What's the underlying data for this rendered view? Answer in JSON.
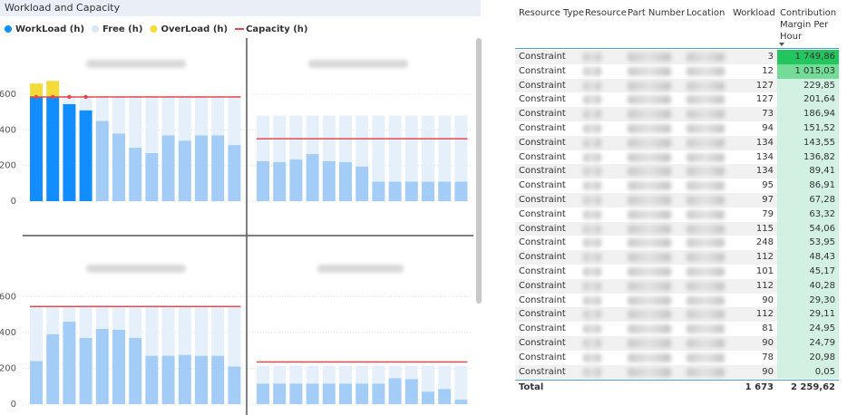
{
  "chart_data": {
    "type": "bar",
    "title": "Workload and Capacity",
    "ylim": [
      0,
      900
    ],
    "yticks": [
      0,
      200,
      400,
      600
    ],
    "grid": true,
    "series": [
      {
        "name": "WorkLoad (h)",
        "color": "#118dff",
        "dimmed_color": "#a3cdf6"
      },
      {
        "name": "Free (h)",
        "color": "#e6f0fb"
      },
      {
        "name": "OverLoad (h)",
        "color": "#f3dc3a"
      },
      {
        "name": "Capacity (h)",
        "color": "#e5484d"
      }
    ],
    "panels": [
      {
        "workload": [
          585,
          585,
          545,
          510,
          450,
          380,
          300,
          270,
          370,
          340,
          370,
          370,
          315
        ],
        "free": [
          0,
          0,
          45,
          80,
          140,
          210,
          290,
          320,
          220,
          250,
          220,
          220,
          275
        ],
        "overload": [
          75,
          90,
          0,
          0,
          0,
          0,
          0,
          0,
          0,
          0,
          0,
          0,
          0
        ],
        "capacity": 585,
        "highlighted": [
          true,
          true,
          true,
          true,
          false,
          false,
          false,
          false,
          false,
          false,
          false,
          false,
          false
        ]
      },
      {
        "workload": [
          225,
          220,
          235,
          265,
          225,
          220,
          195,
          110,
          110,
          110,
          110,
          110,
          110
        ],
        "free": [
          255,
          260,
          245,
          215,
          255,
          260,
          285,
          370,
          370,
          370,
          370,
          370,
          370
        ],
        "overload": [
          0,
          0,
          0,
          0,
          0,
          0,
          0,
          0,
          0,
          0,
          0,
          0,
          0
        ],
        "capacity": 350,
        "highlighted": [
          false,
          false,
          false,
          false,
          false,
          false,
          false,
          false,
          false,
          false,
          false,
          false,
          false
        ]
      },
      {
        "workload": [
          240,
          390,
          460,
          370,
          420,
          415,
          370,
          270,
          270,
          275,
          270,
          270,
          210
        ],
        "free": [
          305,
          155,
          85,
          175,
          125,
          130,
          175,
          275,
          275,
          270,
          275,
          275,
          335
        ],
        "overload": [
          0,
          0,
          0,
          0,
          0,
          0,
          0,
          0,
          0,
          0,
          0,
          0,
          0
        ],
        "capacity": 545,
        "highlighted": [
          false,
          false,
          false,
          false,
          false,
          false,
          false,
          false,
          false,
          false,
          false,
          false,
          false
        ]
      },
      {
        "workload": [
          115,
          115,
          115,
          115,
          115,
          115,
          115,
          115,
          145,
          140,
          70,
          85,
          25
        ],
        "free": [
          100,
          100,
          100,
          100,
          100,
          100,
          100,
          100,
          70,
          75,
          145,
          130,
          190
        ],
        "overload": [
          0,
          0,
          0,
          0,
          0,
          0,
          0,
          0,
          0,
          0,
          0,
          0,
          0
        ],
        "capacity": 235,
        "highlighted": [
          false,
          false,
          false,
          false,
          false,
          false,
          false,
          false,
          false,
          false,
          false,
          false,
          false
        ]
      }
    ]
  },
  "table": {
    "columns": [
      "Resource Type",
      "Resource",
      "Part Number",
      "Location",
      "Workload",
      "Contribution Margin Per Hour"
    ],
    "rows": [
      {
        "type": "Constraint",
        "workload": 3,
        "margin": "1 749,86"
      },
      {
        "type": "Constraint",
        "workload": 12,
        "margin": "1 015,03"
      },
      {
        "type": "Constraint",
        "workload": 127,
        "margin": "229,85"
      },
      {
        "type": "Constraint",
        "workload": 127,
        "margin": "201,64"
      },
      {
        "type": "Constraint",
        "workload": 73,
        "margin": "186,94"
      },
      {
        "type": "Constraint",
        "workload": 94,
        "margin": "151,52"
      },
      {
        "type": "Constraint",
        "workload": 134,
        "margin": "143,55"
      },
      {
        "type": "Constraint",
        "workload": 134,
        "margin": "136,82"
      },
      {
        "type": "Constraint",
        "workload": 134,
        "margin": "89,41"
      },
      {
        "type": "Constraint",
        "workload": 95,
        "margin": "86,91"
      },
      {
        "type": "Constraint",
        "workload": 97,
        "margin": "67,28"
      },
      {
        "type": "Constraint",
        "workload": 79,
        "margin": "63,32"
      },
      {
        "type": "Constraint",
        "workload": 115,
        "margin": "54,06"
      },
      {
        "type": "Constraint",
        "workload": 248,
        "margin": "53,95"
      },
      {
        "type": "Constraint",
        "workload": 112,
        "margin": "48,43"
      },
      {
        "type": "Constraint",
        "workload": 101,
        "margin": "45,17"
      },
      {
        "type": "Constraint",
        "workload": 112,
        "margin": "40,28"
      },
      {
        "type": "Constraint",
        "workload": 90,
        "margin": "29,30"
      },
      {
        "type": "Constraint",
        "workload": 112,
        "margin": "29,11"
      },
      {
        "type": "Constraint",
        "workload": 81,
        "margin": "24,95"
      },
      {
        "type": "Constraint",
        "workload": 90,
        "margin": "24,79"
      },
      {
        "type": "Constraint",
        "workload": 78,
        "margin": "20,98"
      },
      {
        "type": "Constraint",
        "workload": 90,
        "margin": "0,05"
      }
    ],
    "total": {
      "label": "Total",
      "workload": "1 673",
      "margin": "2 259,62"
    }
  }
}
